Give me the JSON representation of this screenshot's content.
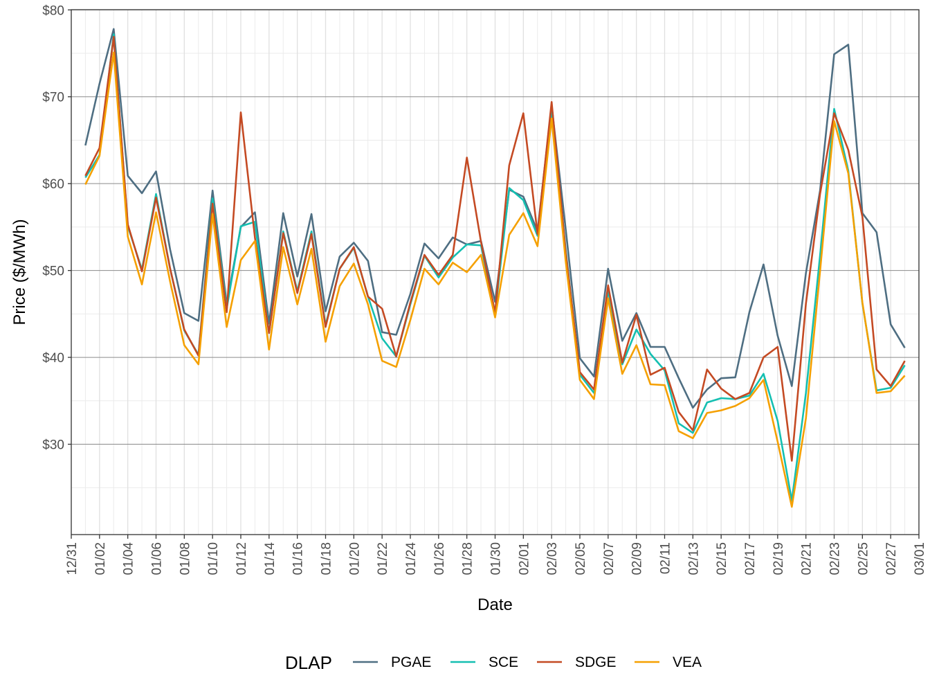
{
  "chart_data": {
    "type": "line",
    "xlabel": "Date",
    "ylabel": "Price ($/MWh)",
    "ylim": [
      20,
      80
    ],
    "y_ticks": [
      "$30",
      "$40",
      "$50",
      "$60",
      "$70",
      "$80"
    ],
    "x_ticks": [
      "12/31",
      "01/02",
      "01/04",
      "01/06",
      "01/08",
      "01/10",
      "01/12",
      "01/14",
      "01/16",
      "01/18",
      "01/20",
      "01/22",
      "01/24",
      "01/26",
      "01/28",
      "01/30",
      "02/01",
      "02/03",
      "02/05",
      "02/07",
      "02/09",
      "02/11",
      "02/13",
      "02/15",
      "02/17",
      "02/19",
      "02/21",
      "02/23",
      "02/25",
      "02/27",
      "03/01"
    ],
    "x": [
      "01/01",
      "01/02",
      "01/03",
      "01/04",
      "01/05",
      "01/06",
      "01/07",
      "01/08",
      "01/09",
      "01/10",
      "01/11",
      "01/12",
      "01/13",
      "01/14",
      "01/15",
      "01/16",
      "01/17",
      "01/18",
      "01/19",
      "01/20",
      "01/21",
      "01/22",
      "01/23",
      "01/24",
      "01/25",
      "01/26",
      "01/27",
      "01/28",
      "01/29",
      "01/30",
      "01/31",
      "02/01",
      "02/02",
      "02/03",
      "02/04",
      "02/05",
      "02/06",
      "02/07",
      "02/08",
      "02/09",
      "02/10",
      "02/11",
      "02/12",
      "02/13",
      "02/14",
      "02/15",
      "02/16",
      "02/17",
      "02/18",
      "02/19",
      "02/20",
      "02/21",
      "02/22",
      "02/23",
      "02/24",
      "02/25",
      "02/26",
      "02/27",
      "02/28"
    ],
    "grid": true,
    "legend_position": "bottom",
    "legend_title": "DLAP",
    "series": [
      {
        "name": "PGAE",
        "color": "#4e6e82",
        "values": [
          64.4,
          71.5,
          77.8,
          60.9,
          58.9,
          61.4,
          52.4,
          45.1,
          44.2,
          59.2,
          46.2,
          55.0,
          56.7,
          43.9,
          56.6,
          49.3,
          56.5,
          45.3,
          51.6,
          53.2,
          51.1,
          42.9,
          42.6,
          47.3,
          53.1,
          51.4,
          53.8,
          53.0,
          53.4,
          46.4,
          59.3,
          58.5,
          54.5,
          69.0,
          54.7,
          39.9,
          37.8,
          50.2,
          41.9,
          45.1,
          41.2,
          41.2,
          37.6,
          34.2,
          36.3,
          37.6,
          37.7,
          45.2,
          50.7,
          42.5,
          36.7,
          49.7,
          59.2,
          74.9,
          76.0,
          56.6,
          54.4,
          43.8,
          41.1
        ]
      },
      {
        "name": "SCE",
        "color": "#14bfb1",
        "values": [
          60.7,
          63.3,
          77.2,
          55.1,
          50.1,
          58.8,
          50.2,
          43.1,
          40.3,
          58.3,
          45.6,
          55.1,
          55.6,
          42.8,
          54.5,
          47.6,
          54.5,
          43.7,
          50.2,
          52.6,
          47.0,
          42.2,
          40.1,
          46.1,
          51.7,
          49.2,
          51.5,
          53.0,
          52.9,
          45.1,
          59.5,
          58.1,
          54.0,
          68.3,
          52.3,
          38.0,
          35.9,
          47.7,
          39.2,
          43.2,
          40.4,
          38.5,
          32.4,
          31.3,
          34.8,
          35.3,
          35.2,
          35.6,
          38.1,
          32.7,
          23.5,
          35.9,
          51.7,
          68.6,
          61.5,
          46.2,
          36.2,
          36.5,
          39.1
        ]
      },
      {
        "name": "SDGE",
        "color": "#c44a23",
        "values": [
          60.9,
          64.1,
          76.9,
          55.3,
          49.9,
          58.4,
          50.2,
          43.2,
          40.2,
          57.7,
          45.2,
          68.2,
          53.8,
          42.8,
          54.3,
          47.4,
          54.2,
          43.5,
          50.2,
          52.7,
          47.0,
          45.6,
          40.1,
          46.3,
          51.8,
          49.5,
          51.8,
          63.0,
          53.3,
          45.1,
          62.1,
          68.1,
          54.2,
          69.4,
          52.0,
          38.3,
          36.3,
          48.3,
          39.4,
          44.9,
          38.0,
          38.8,
          33.7,
          31.6,
          38.6,
          36.4,
          35.2,
          35.9,
          40.0,
          41.2,
          28.1,
          46.2,
          58.8,
          68.1,
          63.9,
          56.2,
          38.6,
          36.7,
          39.6
        ]
      },
      {
        "name": "VEA",
        "color": "#f5a000",
        "values": [
          59.9,
          63.2,
          75.1,
          53.9,
          48.4,
          56.7,
          48.7,
          41.4,
          39.2,
          56.5,
          43.5,
          51.2,
          53.4,
          40.9,
          52.7,
          46.1,
          52.5,
          41.8,
          48.2,
          50.8,
          46.1,
          39.6,
          38.9,
          44.3,
          50.2,
          48.4,
          50.9,
          49.8,
          51.8,
          44.6,
          54.1,
          56.6,
          52.8,
          67.5,
          51.0,
          37.4,
          35.2,
          46.8,
          38.1,
          41.4,
          36.9,
          36.8,
          31.5,
          30.7,
          33.6,
          33.9,
          34.4,
          35.3,
          37.4,
          30.3,
          22.8,
          33.0,
          49.9,
          67.2,
          61.2,
          46.3,
          35.9,
          36.1,
          37.9
        ]
      }
    ]
  }
}
